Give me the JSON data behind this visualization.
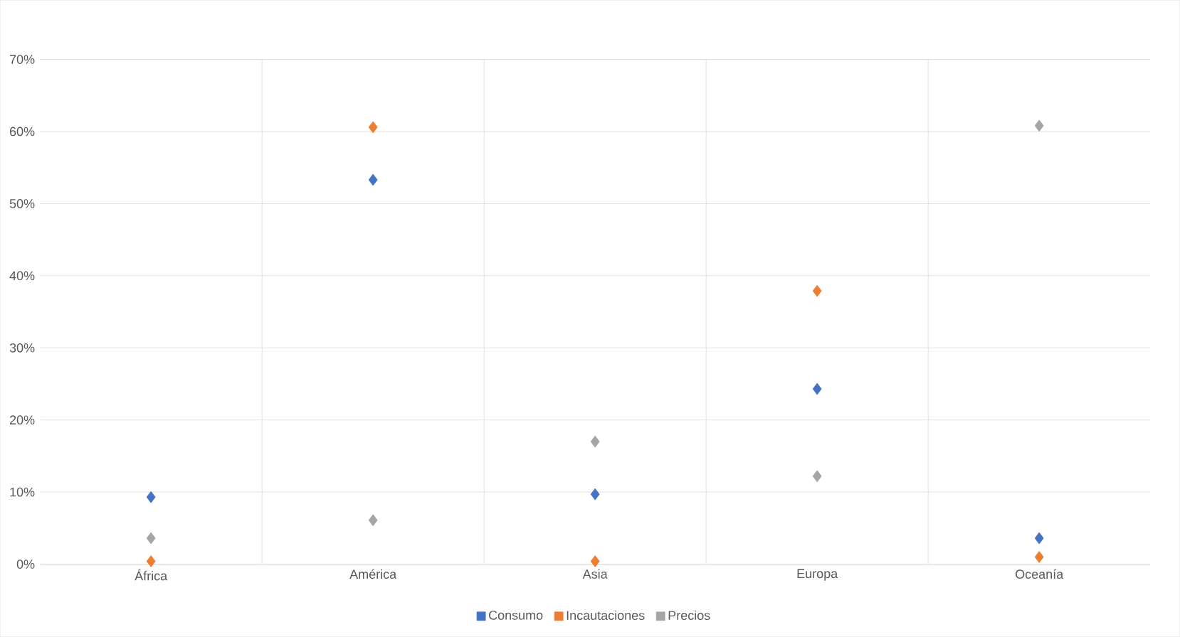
{
  "chart_data": {
    "type": "scatter",
    "categories": [
      "África",
      "América",
      "Asia",
      "Europa",
      "Oceanía"
    ],
    "series": [
      {
        "name": "Consumo",
        "color": "#4472c4",
        "values": [
          9.3,
          53.3,
          9.7,
          24.3,
          3.6
        ]
      },
      {
        "name": "Incautaciones",
        "color": "#ed7d31",
        "values": [
          0.4,
          60.6,
          0.4,
          37.9,
          1.0
        ]
      },
      {
        "name": "Precios",
        "color": "#a5a5a5",
        "values": [
          3.6,
          6.1,
          17.0,
          12.2,
          60.8
        ]
      }
    ],
    "ylim": [
      0,
      70
    ],
    "yticks": [
      {
        "value": 0,
        "label": "0%"
      },
      {
        "value": 10,
        "label": "10%"
      },
      {
        "value": 20,
        "label": "20%"
      },
      {
        "value": 30,
        "label": "30%"
      },
      {
        "value": 40,
        "label": "40%"
      },
      {
        "value": 50,
        "label": "50%"
      },
      {
        "value": 60,
        "label": "60%"
      },
      {
        "value": 70,
        "label": "70%"
      }
    ],
    "grid": true,
    "marker": "diamond",
    "legend": "bottom"
  }
}
